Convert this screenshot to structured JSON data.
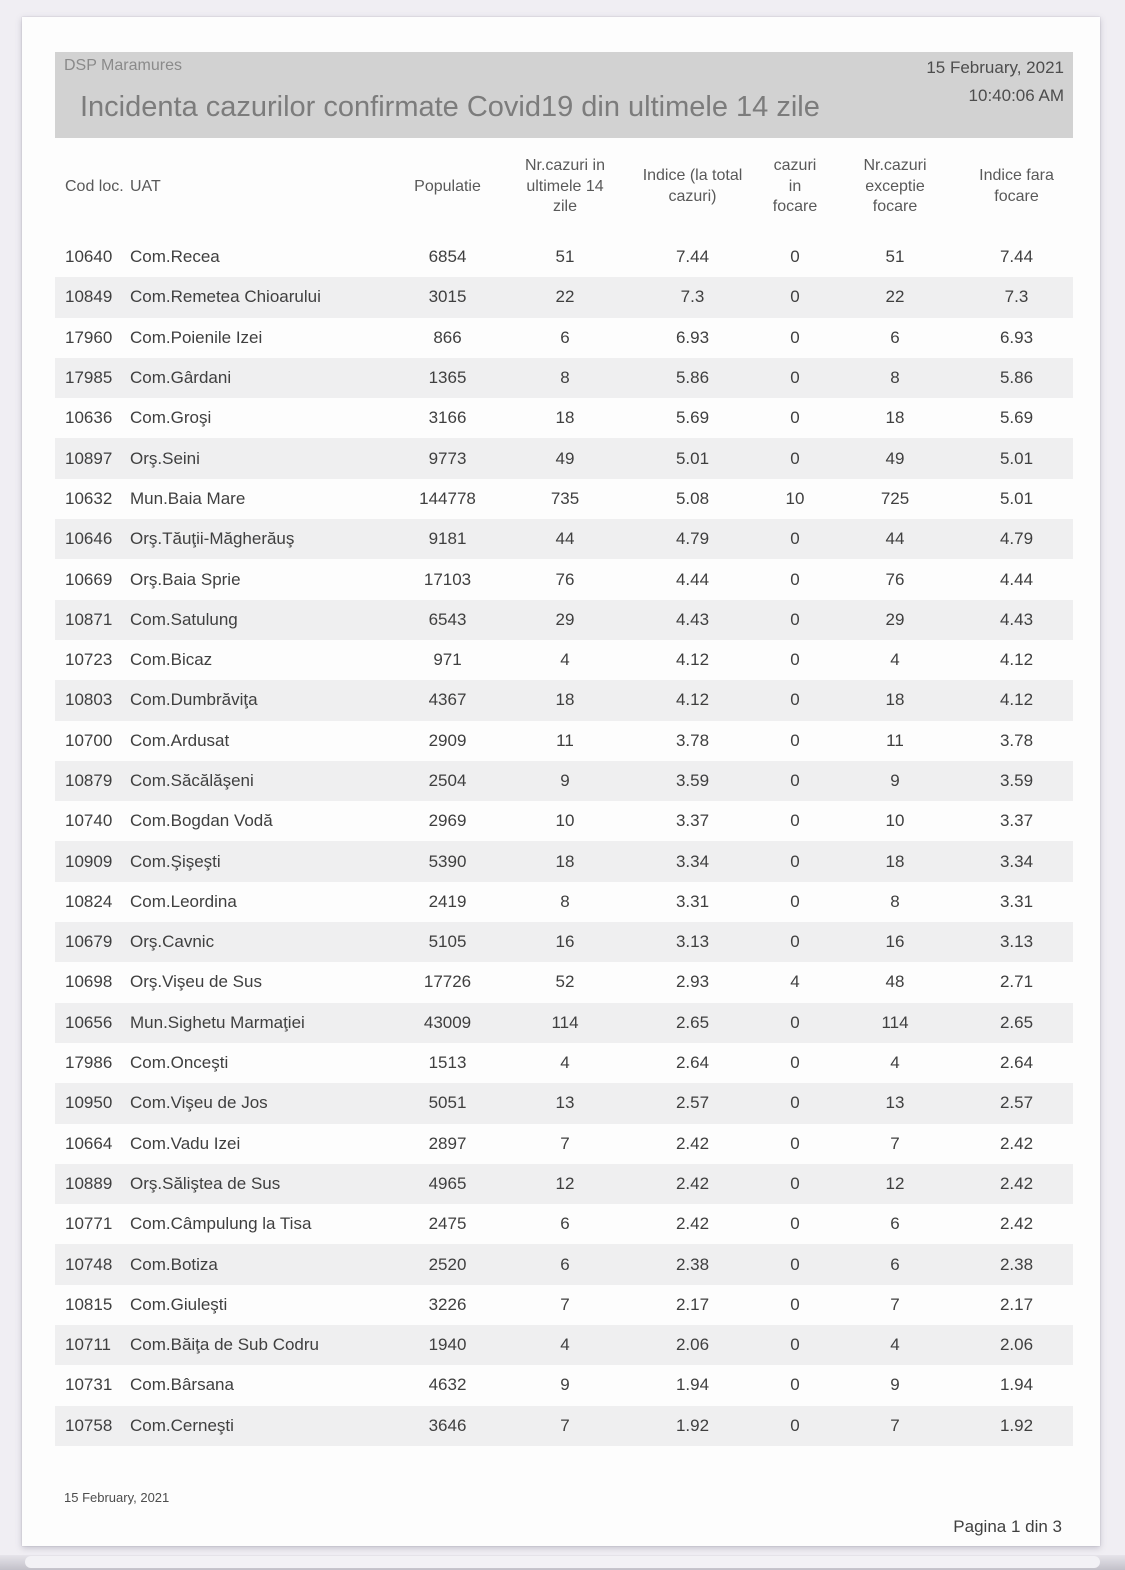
{
  "header": {
    "org": "DSP Maramures",
    "title": "Incidenta cazurilor confirmate Covid19 din ultimele 14 zile",
    "date": "15 February, 2021",
    "time": "10:40:06 AM"
  },
  "footer": {
    "date": "15 February, 2021",
    "page_indicator": "Pagina 1 din 3"
  },
  "colors": {
    "viewer_background": "#f0eef3",
    "page_background": "#fdfdfd",
    "title_band": "#d2d2d2",
    "alt_row": "#efeff0",
    "header_text": "#595959",
    "row_text": "#3f3f3f"
  },
  "table": {
    "headers": [
      "Cod loc.",
      "UAT",
      "Populatie",
      "Nr.cazuri in\nultimele 14\nzile",
      "Indice (la total\ncazuri)",
      "cazuri\nin\nfocare",
      "Nr.cazuri\nexceptie\nfocare",
      "Indice fara\nfocare"
    ],
    "column_names": [
      "cod-loc",
      "uat-name",
      "populatie",
      "nr-cazuri-14-zile",
      "indice-total-cazuri",
      "cazuri-in-focare",
      "nr-cazuri-exceptie-focare",
      "indice-fara-focare"
    ],
    "rows": [
      [
        "10640",
        "Com.Recea",
        "6854",
        "51",
        "7.44",
        "0",
        "51",
        "7.44"
      ],
      [
        "10849",
        "Com.Remetea Chioarului",
        "3015",
        "22",
        "7.3",
        "0",
        "22",
        "7.3"
      ],
      [
        "17960",
        "Com.Poienile Izei",
        "866",
        "6",
        "6.93",
        "0",
        "6",
        "6.93"
      ],
      [
        "17985",
        "Com.Gârdani",
        "1365",
        "8",
        "5.86",
        "0",
        "8",
        "5.86"
      ],
      [
        "10636",
        "Com.Groşi",
        "3166",
        "18",
        "5.69",
        "0",
        "18",
        "5.69"
      ],
      [
        "10897",
        "Orş.Seini",
        "9773",
        "49",
        "5.01",
        "0",
        "49",
        "5.01"
      ],
      [
        "10632",
        "Mun.Baia Mare",
        "144778",
        "735",
        "5.08",
        "10",
        "725",
        "5.01"
      ],
      [
        "10646",
        "Orş.Tăuţii-Măgherăuş",
        "9181",
        "44",
        "4.79",
        "0",
        "44",
        "4.79"
      ],
      [
        "10669",
        "Orş.Baia Sprie",
        "17103",
        "76",
        "4.44",
        "0",
        "76",
        "4.44"
      ],
      [
        "10871",
        "Com.Satulung",
        "6543",
        "29",
        "4.43",
        "0",
        "29",
        "4.43"
      ],
      [
        "10723",
        "Com.Bicaz",
        "971",
        "4",
        "4.12",
        "0",
        "4",
        "4.12"
      ],
      [
        "10803",
        "Com.Dumbrăviţa",
        "4367",
        "18",
        "4.12",
        "0",
        "18",
        "4.12"
      ],
      [
        "10700",
        "Com.Ardusat",
        "2909",
        "11",
        "3.78",
        "0",
        "11",
        "3.78"
      ],
      [
        "10879",
        "Com.Săcălăşeni",
        "2504",
        "9",
        "3.59",
        "0",
        "9",
        "3.59"
      ],
      [
        "10740",
        "Com.Bogdan Vodă",
        "2969",
        "10",
        "3.37",
        "0",
        "10",
        "3.37"
      ],
      [
        "10909",
        "Com.Şişeşti",
        "5390",
        "18",
        "3.34",
        "0",
        "18",
        "3.34"
      ],
      [
        "10824",
        "Com.Leordina",
        "2419",
        "8",
        "3.31",
        "0",
        "8",
        "3.31"
      ],
      [
        "10679",
        "Orş.Cavnic",
        "5105",
        "16",
        "3.13",
        "0",
        "16",
        "3.13"
      ],
      [
        "10698",
        "Orş.Vişeu de Sus",
        "17726",
        "52",
        "2.93",
        "4",
        "48",
        "2.71"
      ],
      [
        "10656",
        "Mun.Sighetu Marmaţiei",
        "43009",
        "114",
        "2.65",
        "0",
        "114",
        "2.65"
      ],
      [
        "17986",
        "Com.Onceşti",
        "1513",
        "4",
        "2.64",
        "0",
        "4",
        "2.64"
      ],
      [
        "10950",
        "Com.Vişeu de Jos",
        "5051",
        "13",
        "2.57",
        "0",
        "13",
        "2.57"
      ],
      [
        "10664",
        "Com.Vadu Izei",
        "2897",
        "7",
        "2.42",
        "0",
        "7",
        "2.42"
      ],
      [
        "10889",
        "Orş.Săliştea de Sus",
        "4965",
        "12",
        "2.42",
        "0",
        "12",
        "2.42"
      ],
      [
        "10771",
        "Com.Câmpulung la Tisa",
        "2475",
        "6",
        "2.42",
        "0",
        "6",
        "2.42"
      ],
      [
        "10748",
        "Com.Botiza",
        "2520",
        "6",
        "2.38",
        "0",
        "6",
        "2.38"
      ],
      [
        "10815",
        "Com.Giuleşti",
        "3226",
        "7",
        "2.17",
        "0",
        "7",
        "2.17"
      ],
      [
        "10711",
        "Com.Băiţa de Sub Codru",
        "1940",
        "4",
        "2.06",
        "0",
        "4",
        "2.06"
      ],
      [
        "10731",
        "Com.Bârsana",
        "4632",
        "9",
        "1.94",
        "0",
        "9",
        "1.94"
      ],
      [
        "10758",
        "Com.Cerneşti",
        "3646",
        "7",
        "1.92",
        "0",
        "7",
        "1.92"
      ]
    ]
  }
}
